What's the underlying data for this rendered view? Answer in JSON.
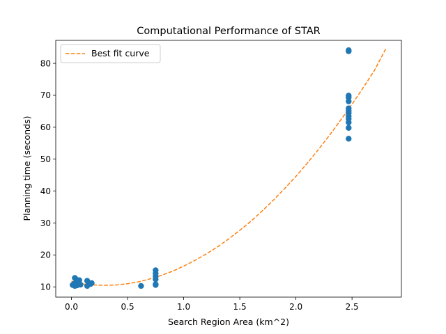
{
  "chart_data": {
    "type": "scatter",
    "title": "Computational Performance of STAR",
    "xlabel": "Search Region Area (km^2)",
    "ylabel": "Planning time (seconds)",
    "xlim": [
      -0.14,
      2.94
    ],
    "ylim": [
      6.8,
      87.2
    ],
    "xticks": [
      0.0,
      0.5,
      1.0,
      1.5,
      2.0,
      2.5
    ],
    "xtick_labels": [
      "0.0",
      "0.5",
      "1.0",
      "1.5",
      "2.0",
      "2.5"
    ],
    "yticks": [
      10,
      20,
      30,
      40,
      50,
      60,
      70,
      80
    ],
    "ytick_labels": [
      "10",
      "20",
      "30",
      "40",
      "50",
      "60",
      "70",
      "80"
    ],
    "grid": false,
    "legend": {
      "position": "top-left",
      "entries": [
        "Best fit curve"
      ]
    },
    "series": [
      {
        "type": "scatter",
        "color": "#1f77b4",
        "points": [
          [
            0.01,
            10.6
          ],
          [
            0.02,
            10.9
          ],
          [
            0.03,
            10.3
          ],
          [
            0.03,
            12.8
          ],
          [
            0.04,
            11.2
          ],
          [
            0.04,
            12.4
          ],
          [
            0.05,
            10.5
          ],
          [
            0.06,
            11.8
          ],
          [
            0.07,
            12.1
          ],
          [
            0.08,
            10.7
          ],
          [
            0.14,
            10.3
          ],
          [
            0.14,
            11.9
          ],
          [
            0.17,
            10.9
          ],
          [
            0.18,
            11.2
          ],
          [
            0.62,
            10.3
          ],
          [
            0.75,
            10.8
          ],
          [
            0.75,
            10.6
          ],
          [
            0.75,
            12.4
          ],
          [
            0.75,
            13.3
          ],
          [
            0.75,
            14.2
          ],
          [
            0.75,
            15.2
          ],
          [
            2.47,
            56.4
          ],
          [
            2.47,
            59.8
          ],
          [
            2.47,
            61.5
          ],
          [
            2.47,
            62.6
          ],
          [
            2.47,
            63.5
          ],
          [
            2.47,
            64.4
          ],
          [
            2.47,
            65.1
          ],
          [
            2.47,
            65.9
          ],
          [
            2.47,
            68.1
          ],
          [
            2.47,
            69.3
          ],
          [
            2.47,
            69.9
          ],
          [
            2.47,
            83.8
          ],
          [
            2.47,
            84.1
          ]
        ]
      },
      {
        "name": "Best fit curve",
        "type": "line",
        "style": "dashed",
        "color": "#ff7f0e",
        "x": [
          0.0,
          0.1,
          0.2,
          0.3,
          0.4,
          0.5,
          0.6,
          0.7,
          0.8,
          0.9,
          1.0,
          1.1,
          1.2,
          1.3,
          1.4,
          1.5,
          1.6,
          1.7,
          1.8,
          1.9,
          2.0,
          2.1,
          2.2,
          2.3,
          2.4,
          2.5,
          2.6,
          2.7,
          2.8
        ],
        "y": [
          11.8,
          10.9,
          10.6,
          10.5,
          10.6,
          11.0,
          11.6,
          12.5,
          13.6,
          14.9,
          16.5,
          18.3,
          20.3,
          22.5,
          25.0,
          27.7,
          30.6,
          33.8,
          37.2,
          40.8,
          44.6,
          48.7,
          53.0,
          57.5,
          62.3,
          67.2,
          72.4,
          77.8,
          84.5
        ]
      }
    ]
  }
}
